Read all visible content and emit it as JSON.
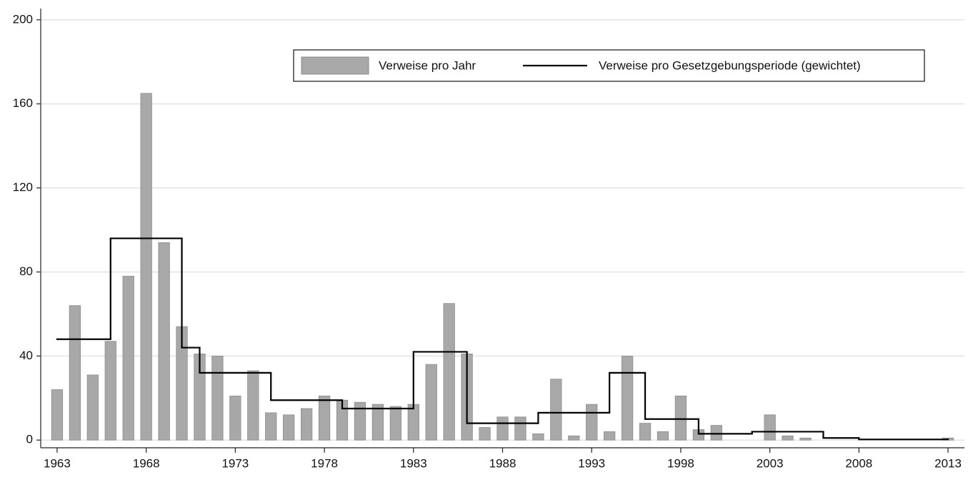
{
  "chart_data": {
    "type": "bar-step",
    "x": [
      1963,
      1964,
      1965,
      1966,
      1967,
      1968,
      1969,
      1970,
      1971,
      1972,
      1973,
      1974,
      1975,
      1976,
      1977,
      1978,
      1979,
      1980,
      1981,
      1982,
      1983,
      1984,
      1985,
      1986,
      1987,
      1988,
      1989,
      1990,
      1991,
      1992,
      1993,
      1994,
      1995,
      1996,
      1997,
      1998,
      1999,
      2000,
      2001,
      2002,
      2003,
      2004,
      2005,
      2006,
      2007,
      2008,
      2009,
      2010,
      2011,
      2012,
      2013
    ],
    "series": [
      {
        "name": "Verweise pro Jahr",
        "color": "#a8a8a8",
        "values": [
          24,
          64,
          31,
          47,
          78,
          165,
          94,
          54,
          41,
          40,
          21,
          33,
          13,
          12,
          15,
          21,
          19,
          18,
          17,
          16,
          17,
          36,
          65,
          41,
          6,
          11,
          11,
          3,
          29,
          2,
          17,
          4,
          40,
          8,
          4,
          21,
          5,
          7,
          0,
          0,
          12,
          2,
          1,
          0,
          0,
          0,
          0,
          0,
          0,
          0,
          1
        ]
      },
      {
        "name": "Verweise pro Gesetzgebungsperiode (gewichtet)",
        "color": "#000000",
        "segments": [
          {
            "start": 1963,
            "end": 1966,
            "value": 48
          },
          {
            "start": 1966,
            "end": 1970,
            "value": 96
          },
          {
            "start": 1970,
            "end": 1971,
            "value": 44
          },
          {
            "start": 1971,
            "end": 1975,
            "value": 32
          },
          {
            "start": 1975,
            "end": 1979,
            "value": 19
          },
          {
            "start": 1979,
            "end": 1983,
            "value": 15
          },
          {
            "start": 1983,
            "end": 1986,
            "value": 42
          },
          {
            "start": 1986,
            "end": 1990,
            "value": 8
          },
          {
            "start": 1990,
            "end": 1994,
            "value": 13
          },
          {
            "start": 1994,
            "end": 1996,
            "value": 32
          },
          {
            "start": 1996,
            "end": 1999,
            "value": 10
          },
          {
            "start": 1999,
            "end": 2002,
            "value": 3
          },
          {
            "start": 2002,
            "end": 2006,
            "value": 4
          },
          {
            "start": 2006,
            "end": 2008,
            "value": 1
          },
          {
            "start": 2008,
            "end": 2013,
            "value": 0.3
          }
        ]
      }
    ],
    "xlim": [
      1962,
      2014
    ],
    "xticks": [
      1963,
      1968,
      1973,
      1978,
      1983,
      1988,
      1993,
      1998,
      2003,
      2008,
      2013
    ],
    "ylim": [
      -4,
      204
    ],
    "yticks": [
      0,
      40,
      80,
      120,
      160,
      200
    ],
    "grid": true
  }
}
